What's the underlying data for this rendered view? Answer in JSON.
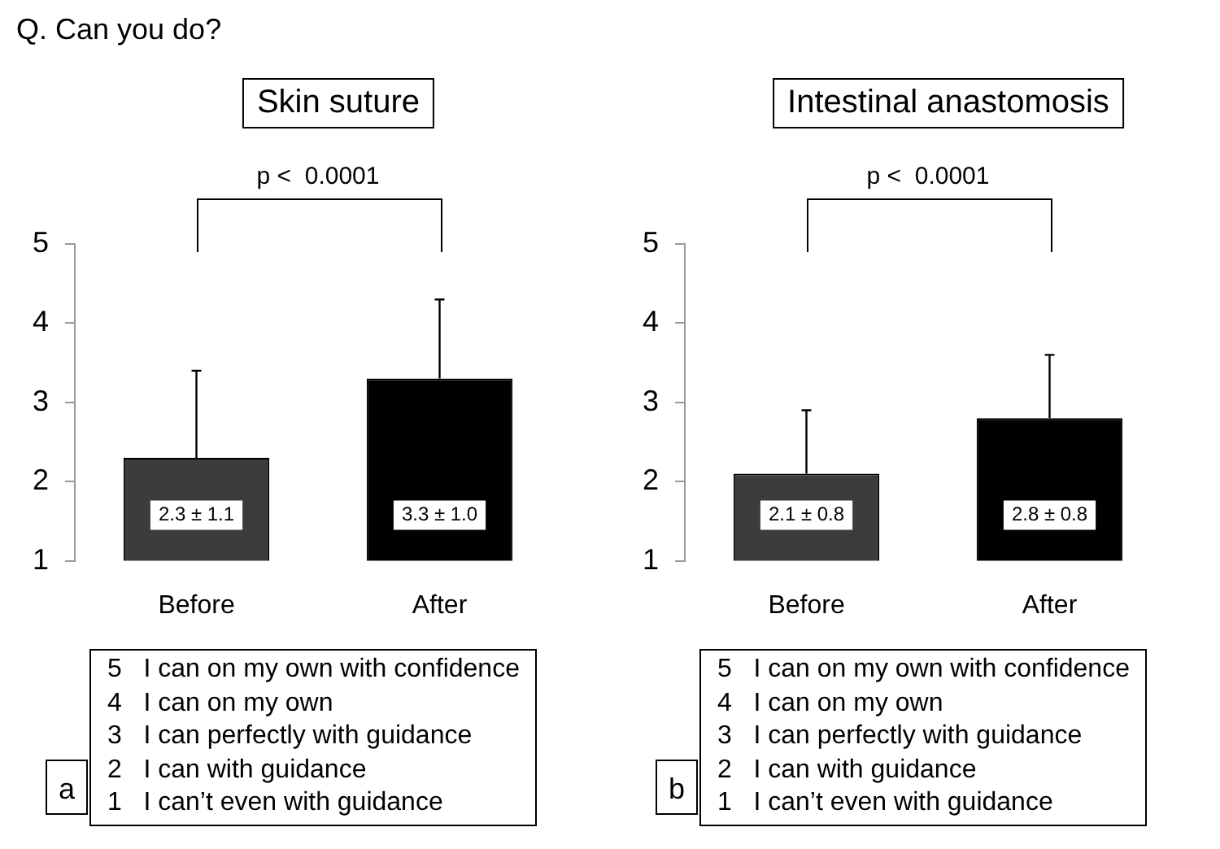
{
  "chart_data": [
    {
      "type": "bar",
      "title": "Skin suture",
      "categories": [
        "Before",
        "After"
      ],
      "values": [
        2.3,
        3.3
      ],
      "colors": [
        "#3c3c3c",
        "#000000"
      ],
      "errors": [
        [
          2.3,
          3.4
        ],
        [
          3.3,
          4.3
        ]
      ],
      "value_labels": [
        "2.3 ± 1.1",
        "3.3 ± 1.0"
      ],
      "ylim": [
        1,
        5
      ],
      "yticks": [
        1,
        2,
        3,
        4,
        5
      ],
      "grid": false,
      "legend": false,
      "annotations": [
        "Q. Can you do?",
        "p <  0.0001",
        "a",
        "5   I can on my own with confidence\n4   I can on my own\n3   I can perfectly with guidance\n2   I can with guidance\n1   I can’t even with guidance"
      ]
    },
    {
      "type": "bar",
      "title": "Intestinal anastomosis",
      "categories": [
        "Before",
        "After"
      ],
      "values": [
        2.1,
        2.8
      ],
      "colors": [
        "#3c3c3c",
        "#000000"
      ],
      "errors": [
        [
          2.1,
          2.9
        ],
        [
          2.8,
          3.6
        ]
      ],
      "value_labels": [
        "2.1 ± 0.8",
        "2.8 ± 0.8"
      ],
      "ylim": [
        1,
        5
      ],
      "yticks": [
        1,
        2,
        3,
        4,
        5
      ],
      "grid": false,
      "legend": false,
      "annotations": [
        "p <  0.0001",
        "b",
        "5   I can on my own with confidence\n4   I can on my own\n3   I can perfectly with guidance\n2   I can with guidance\n1   I can’t even with guidance"
      ]
    }
  ]
}
